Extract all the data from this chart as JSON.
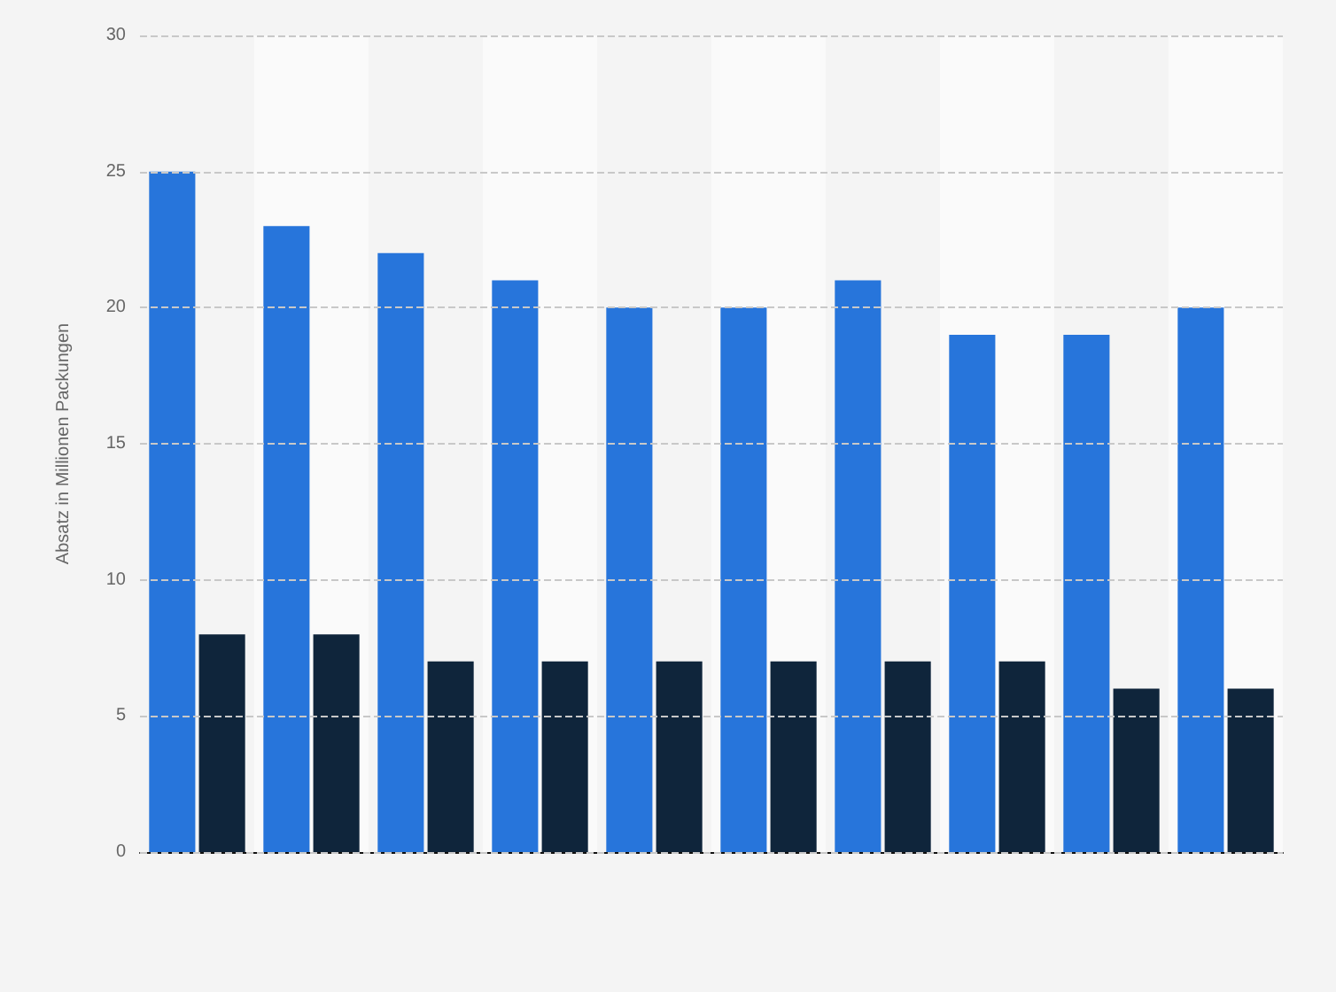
{
  "chart_data": {
    "type": "bar",
    "ylabel": "Absatz in Millionen Packungen",
    "categories": [
      null,
      null,
      null,
      null,
      null,
      null,
      null,
      null,
      null,
      null
    ],
    "series": [
      {
        "color": "#2775db",
        "values": [
          25,
          23,
          22,
          21,
          20,
          20,
          21,
          19,
          19,
          20
        ]
      },
      {
        "color": "#0f253b",
        "values": [
          8,
          8,
          7,
          7,
          7,
          7,
          7,
          7,
          6,
          6
        ]
      }
    ],
    "ylim": [
      0,
      30
    ],
    "yticks": [
      0,
      5,
      10,
      15,
      20,
      25,
      30
    ],
    "grid": "y"
  }
}
